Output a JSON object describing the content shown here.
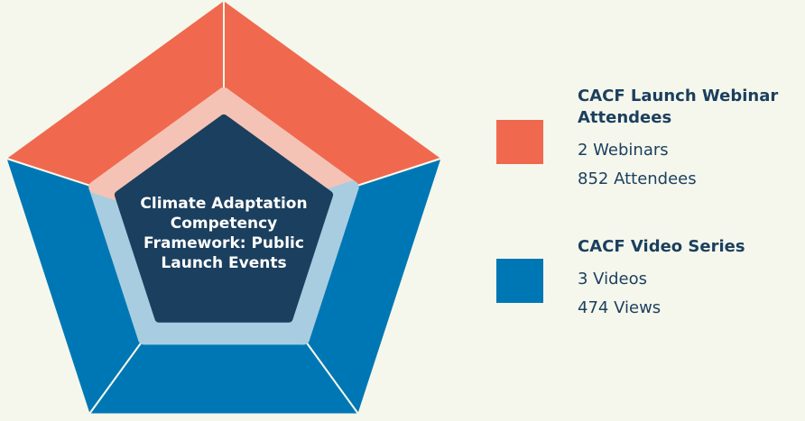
{
  "center_label": [
    "Climate Adaptation",
    "Competency",
    "Framework: Public",
    "Launch Events"
  ],
  "legend": [
    {
      "title": "CACF Launch Webinar Attendees",
      "lines": [
        "2 Webinars",
        "852 Attendees"
      ]
    },
    {
      "title": "CACF Video Series",
      "lines": [
        "3 Videos",
        "474 Views"
      ]
    }
  ]
}
